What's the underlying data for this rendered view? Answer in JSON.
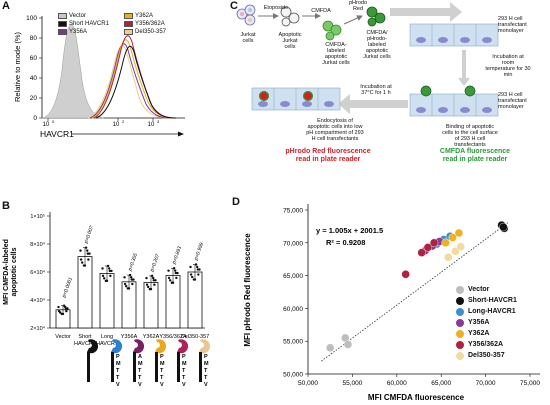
{
  "panels": {
    "a": "A",
    "b": "B",
    "c": "C",
    "d": "D"
  },
  "panel_a": {
    "ylabel": "Relative to mode (%)",
    "xlabel": "HAVCR1",
    "yticks": [
      "100",
      "80",
      "60",
      "40",
      "20",
      "0"
    ],
    "xticks": [
      "10",
      "10",
      "10"
    ],
    "xtick_exps": [
      "0",
      "2",
      "3"
    ],
    "legend": [
      {
        "label": "Vector",
        "color": "#c8c8c8"
      },
      {
        "label": "Short HAVCR1",
        "color": "#111111"
      },
      {
        "label": "Y356A",
        "color": "#7a3a8a"
      },
      {
        "label": "Y362A",
        "color": "#e8b020"
      },
      {
        "label": "Y356/362A",
        "color": "#b02040"
      },
      {
        "label": "Del350-357",
        "color": "#e8d090"
      }
    ]
  },
  "panel_b": {
    "ylabel_line1": "MFI CMFDA-labeled",
    "ylabel_line2": "apoptotic cells",
    "yticks": [
      "1×10⁵",
      "8×10⁴",
      "6×10⁴",
      "4×10⁴",
      "2×10⁴"
    ],
    "bars": [
      {
        "label": "Vector",
        "mean": 33000,
        "p": ""
      },
      {
        "label": "Short HAVCR1",
        "mean": 71000,
        "p": "p=0.007"
      },
      {
        "label": "Long HAVCR1",
        "mean": 59000,
        "p": ""
      },
      {
        "label": "Y356A",
        "mean": 53000,
        "p": "p=0.355"
      },
      {
        "label": "Y362A",
        "mean": 52500,
        "p": "p=0.207"
      },
      {
        "label": "Y356/362A",
        "mean": 57500,
        "p": "p=0.893"
      },
      {
        "label": "Del350-357",
        "mean": 60000,
        "p": "p=0.999"
      }
    ],
    "vector_p": "p<0.0001",
    "motif_letters": [
      "P",
      "M",
      "T",
      "T",
      "V"
    ]
  },
  "panel_c": {
    "jurkat": "Jurkat\ncells",
    "etoposide": "Etoposide",
    "apoptotic": "Apoptotic\nJurkat\ncells",
    "cmfda": "CMFDA",
    "cmfda_labeled": "CMFDA-\nlabeled\napoptotic\nJurkat cells",
    "phrodo": "pHrodo\nRed",
    "double_labeled": "CMFDA/\npHrodo-\nlabeled\napoptotic\nJurkat cells",
    "monolayer1": "293 H  cell\ntransfectant\nmonolayer",
    "incubation_rt": "Incubation at\nroom\ntemperature for 30\nmin",
    "monolayer2": "293 H  cell\ntransfectant\nmonolayer",
    "binding": "Binding of apoptotic\ncells to the cell surface\nof 293 H cell\ntransfectants",
    "incubation_37": "Incubation at\n37°C for 1 h",
    "endocytosis": "Endocytosis of\napoptotic cells into low\npH compartment of 293\nH cell transfectants",
    "phrodo_read": "pHrodo Red fluorescence\nread in plate reader",
    "cmfda_read": "CMFDA fluorescence\nread in plate reader"
  },
  "chart_data": {
    "type": "scatter",
    "title": "",
    "xlabel": "MFI CMFDA fluorescence",
    "ylabel": "MFI pHrodo Red fluorescence",
    "xlim": [
      50000,
      75000
    ],
    "ylim": [
      50000,
      75000
    ],
    "xticks": [
      "50,000",
      "55,000",
      "60,000",
      "65,000",
      "70,000",
      "75,000"
    ],
    "yticks": [
      "75,000",
      "70,000",
      "65,000",
      "60,000",
      "55,000",
      "50,000"
    ],
    "equation": "y = 1.005x + 2001.5",
    "r2": "R² = 0.9208",
    "grid": false,
    "legend_position": "right",
    "series": [
      {
        "name": "Vector",
        "color": "#bdbdbd",
        "x": [
          52500,
          54200,
          54500
        ],
        "y": [
          54000,
          55500,
          54500
        ]
      },
      {
        "name": "Short-HAVCR1",
        "color": "#111111",
        "x": [
          71800,
          72100,
          72000
        ],
        "y": [
          72700,
          72200,
          72400
        ]
      },
      {
        "name": "Long-HAVCR1",
        "color": "#3a8fd8",
        "x": [
          64500,
          65300,
          66000
        ],
        "y": [
          69800,
          70500,
          71000
        ]
      },
      {
        "name": "Y356A",
        "color": "#8a3a9a",
        "x": [
          63200,
          64000,
          64800
        ],
        "y": [
          68800,
          69500,
          70200
        ]
      },
      {
        "name": "Y362A",
        "color": "#f0b020",
        "x": [
          65500,
          66300,
          67000
        ],
        "y": [
          70000,
          70800,
          71500
        ]
      },
      {
        "name": "Y356/362A",
        "color": "#b02040",
        "x": [
          61000,
          62800,
          63500,
          64200
        ],
        "y": [
          65200,
          68500,
          69300,
          70000
        ]
      },
      {
        "name": "Del350-357",
        "color": "#f0dca0",
        "x": [
          65800,
          66600,
          67200
        ],
        "y": [
          67800,
          68700,
          69400
        ]
      }
    ]
  }
}
